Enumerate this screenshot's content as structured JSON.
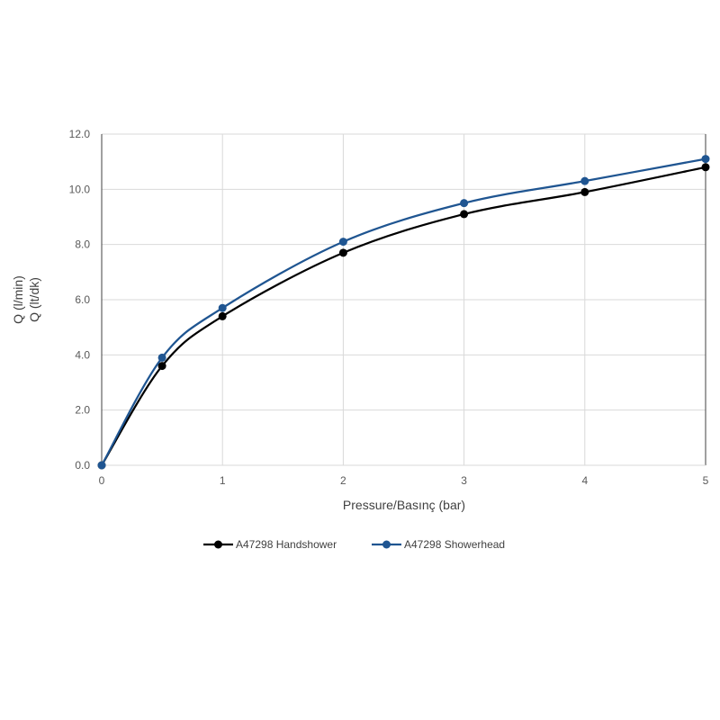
{
  "chart_data": {
    "type": "line",
    "title": "",
    "xlabel": "Pressure/Basınç (bar)",
    "ylabel_lines": [
      "Q (l/min)",
      "Q (lt/dk)"
    ],
    "x": [
      0,
      0.5,
      1,
      2,
      3,
      4,
      5
    ],
    "xlim": [
      0,
      5
    ],
    "ylim": [
      0,
      12
    ],
    "x_ticks": [
      "0",
      "1",
      "2",
      "3",
      "4",
      "5"
    ],
    "x_tick_values": [
      0,
      1,
      2,
      3,
      4,
      5
    ],
    "y_ticks": [
      "0.0",
      "2.0",
      "4.0",
      "6.0",
      "8.0",
      "10.0",
      "12.0"
    ],
    "y_tick_values": [
      0,
      2,
      4,
      6,
      8,
      10,
      12
    ],
    "grid": true,
    "smooth": true,
    "legend_position": "bottom",
    "series": [
      {
        "name": "A47298 Handshower",
        "color": "#000000",
        "values": [
          0,
          3.6,
          5.4,
          7.7,
          9.1,
          9.9,
          10.8
        ]
      },
      {
        "name": "A47298 Showerhead",
        "color": "#1f5591",
        "values": [
          0,
          3.9,
          5.7,
          8.1,
          9.5,
          10.3,
          11.1
        ]
      }
    ]
  }
}
